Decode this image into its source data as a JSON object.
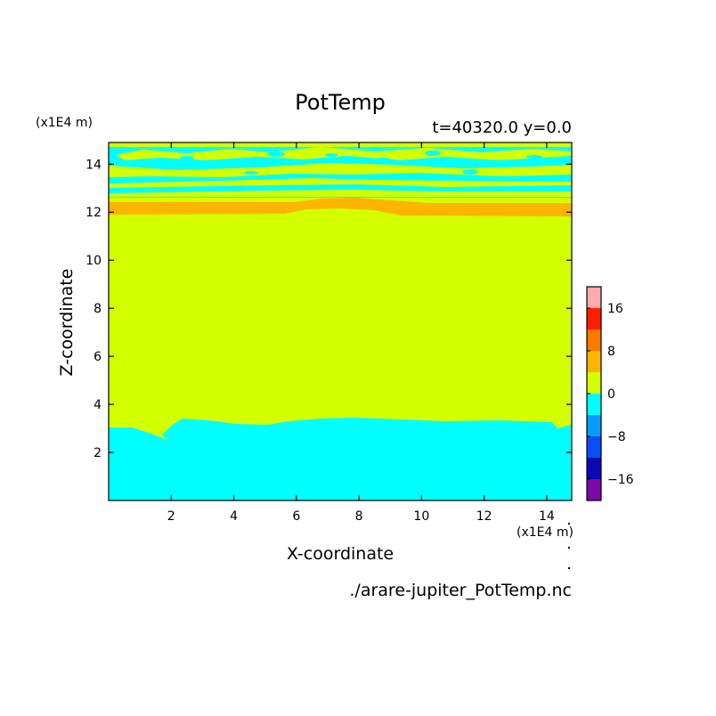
{
  "chart_data": {
    "type": "heatmap",
    "title": "PotTemp",
    "subtitle": "t=40320.0 y=0.0",
    "xlabel": "X-coordinate",
    "ylabel": "Z-coordinate",
    "x_unit": "(x1E4 m)",
    "y_unit": "(x1E4 m)",
    "source": "./arare-jupiter_PotTemp.nc",
    "xlim": [
      0.0,
      14.8
    ],
    "ylim": [
      0.0,
      14.9
    ],
    "x_ticks": [
      2,
      4,
      6,
      8,
      10,
      12,
      14
    ],
    "y_ticks": [
      2,
      4,
      6,
      8,
      10,
      12,
      14
    ],
    "x_tick_labels": [
      "2",
      "4",
      "6",
      "8",
      "10",
      "12",
      "14"
    ],
    "y_tick_labels": [
      "2",
      "4",
      "6",
      "8",
      "10",
      "12",
      "14"
    ],
    "colorbar": {
      "levels": [
        -20,
        -16,
        -12,
        -8,
        -4,
        0,
        4,
        8,
        12,
        16,
        20
      ],
      "colors": [
        "#7b0aa5",
        "#0a0ab4",
        "#0a4ef5",
        "#0a9bff",
        "#00ffff",
        "#d4ff00",
        "#ffb400",
        "#ff7800",
        "#ff1e00",
        "#ffaab0"
      ],
      "tick_values": [
        -16,
        -8,
        0,
        8,
        16
      ],
      "tick_labels": [
        "−16",
        "−8",
        "0",
        "8",
        "16"
      ]
    },
    "regions": [
      {
        "band": "lower cyan layer",
        "range": [
          -4,
          0
        ],
        "z_top_approx": 3.3
      },
      {
        "band": "main yellow-green layer",
        "range": [
          0,
          4
        ],
        "z_range_approx": [
          3.3,
          12.0
        ]
      },
      {
        "band": "orange layer",
        "range": [
          4,
          8
        ],
        "z_range_approx": [
          12.0,
          12.6
        ]
      },
      {
        "band": "alternating cyan/yellow-green bands",
        "range": [
          -4,
          4
        ],
        "z_range_approx": [
          12.6,
          14.9
        ]
      }
    ]
  }
}
